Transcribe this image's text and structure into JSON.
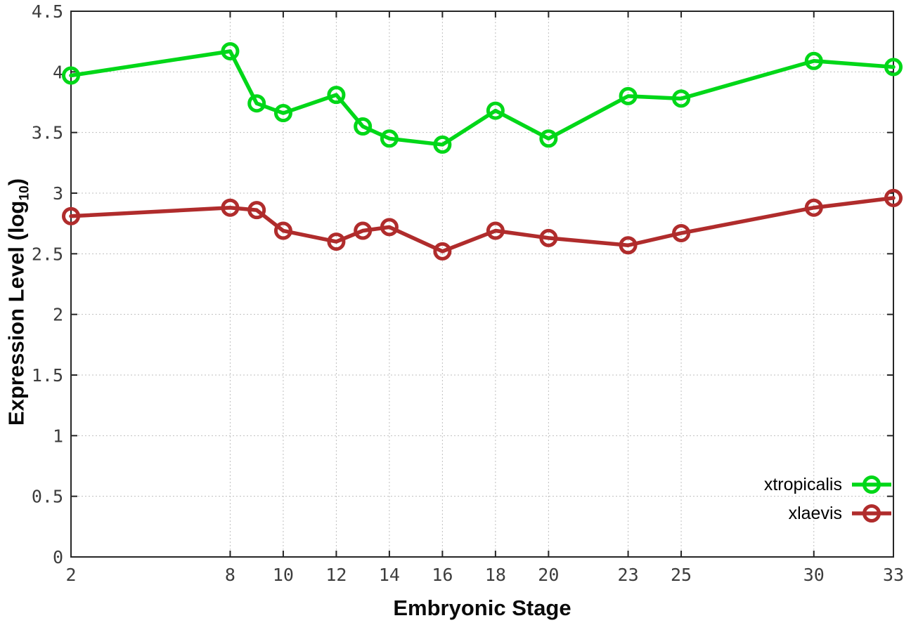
{
  "chart_data": {
    "type": "line",
    "title": "",
    "xlabel": "Embryonic Stage",
    "ylabel": "Expression Level (log10)",
    "ylabel_parts": {
      "main": "Expression Level (log",
      "sub": "10",
      "close": ")"
    },
    "x": [
      2,
      8,
      9,
      10,
      12,
      13,
      14,
      16,
      18,
      20,
      23,
      25,
      30,
      33
    ],
    "series": [
      {
        "name": "xtropicalis",
        "color": "#00d718",
        "values": [
          3.97,
          4.17,
          3.74,
          3.66,
          3.81,
          3.55,
          3.45,
          3.4,
          3.68,
          3.45,
          3.8,
          3.78,
          4.09,
          4.04
        ]
      },
      {
        "name": "xlaevis",
        "color": "#b02c2c",
        "values": [
          2.81,
          2.88,
          2.86,
          2.69,
          2.6,
          2.69,
          2.72,
          2.52,
          2.69,
          2.63,
          2.57,
          2.67,
          2.88,
          2.96
        ]
      }
    ],
    "xlim": [
      2,
      33
    ],
    "ylim": [
      0,
      4.5
    ],
    "x_ticks": [
      2,
      8,
      10,
      12,
      14,
      16,
      18,
      20,
      23,
      25,
      30,
      33
    ],
    "x_tick_labels": [
      "2",
      "8",
      "10",
      "12",
      "14",
      "16",
      "18",
      "20",
      "23",
      "25",
      "30",
      "33"
    ],
    "y_ticks": [
      0,
      0.5,
      1,
      1.5,
      2,
      2.5,
      3,
      3.5,
      4,
      4.5
    ],
    "y_tick_labels": [
      "0",
      "0.5",
      "1",
      "1.5",
      "2",
      "2.5",
      "3",
      "3.5",
      "4",
      "4.5"
    ],
    "grid": true,
    "legend_position": "inside-bottom-right",
    "marker": "open-circle",
    "colors": {
      "background": "#ffffff",
      "border": "#262626",
      "gridline": "#bfbfbf",
      "tick_label": "#3d3d3d"
    }
  }
}
